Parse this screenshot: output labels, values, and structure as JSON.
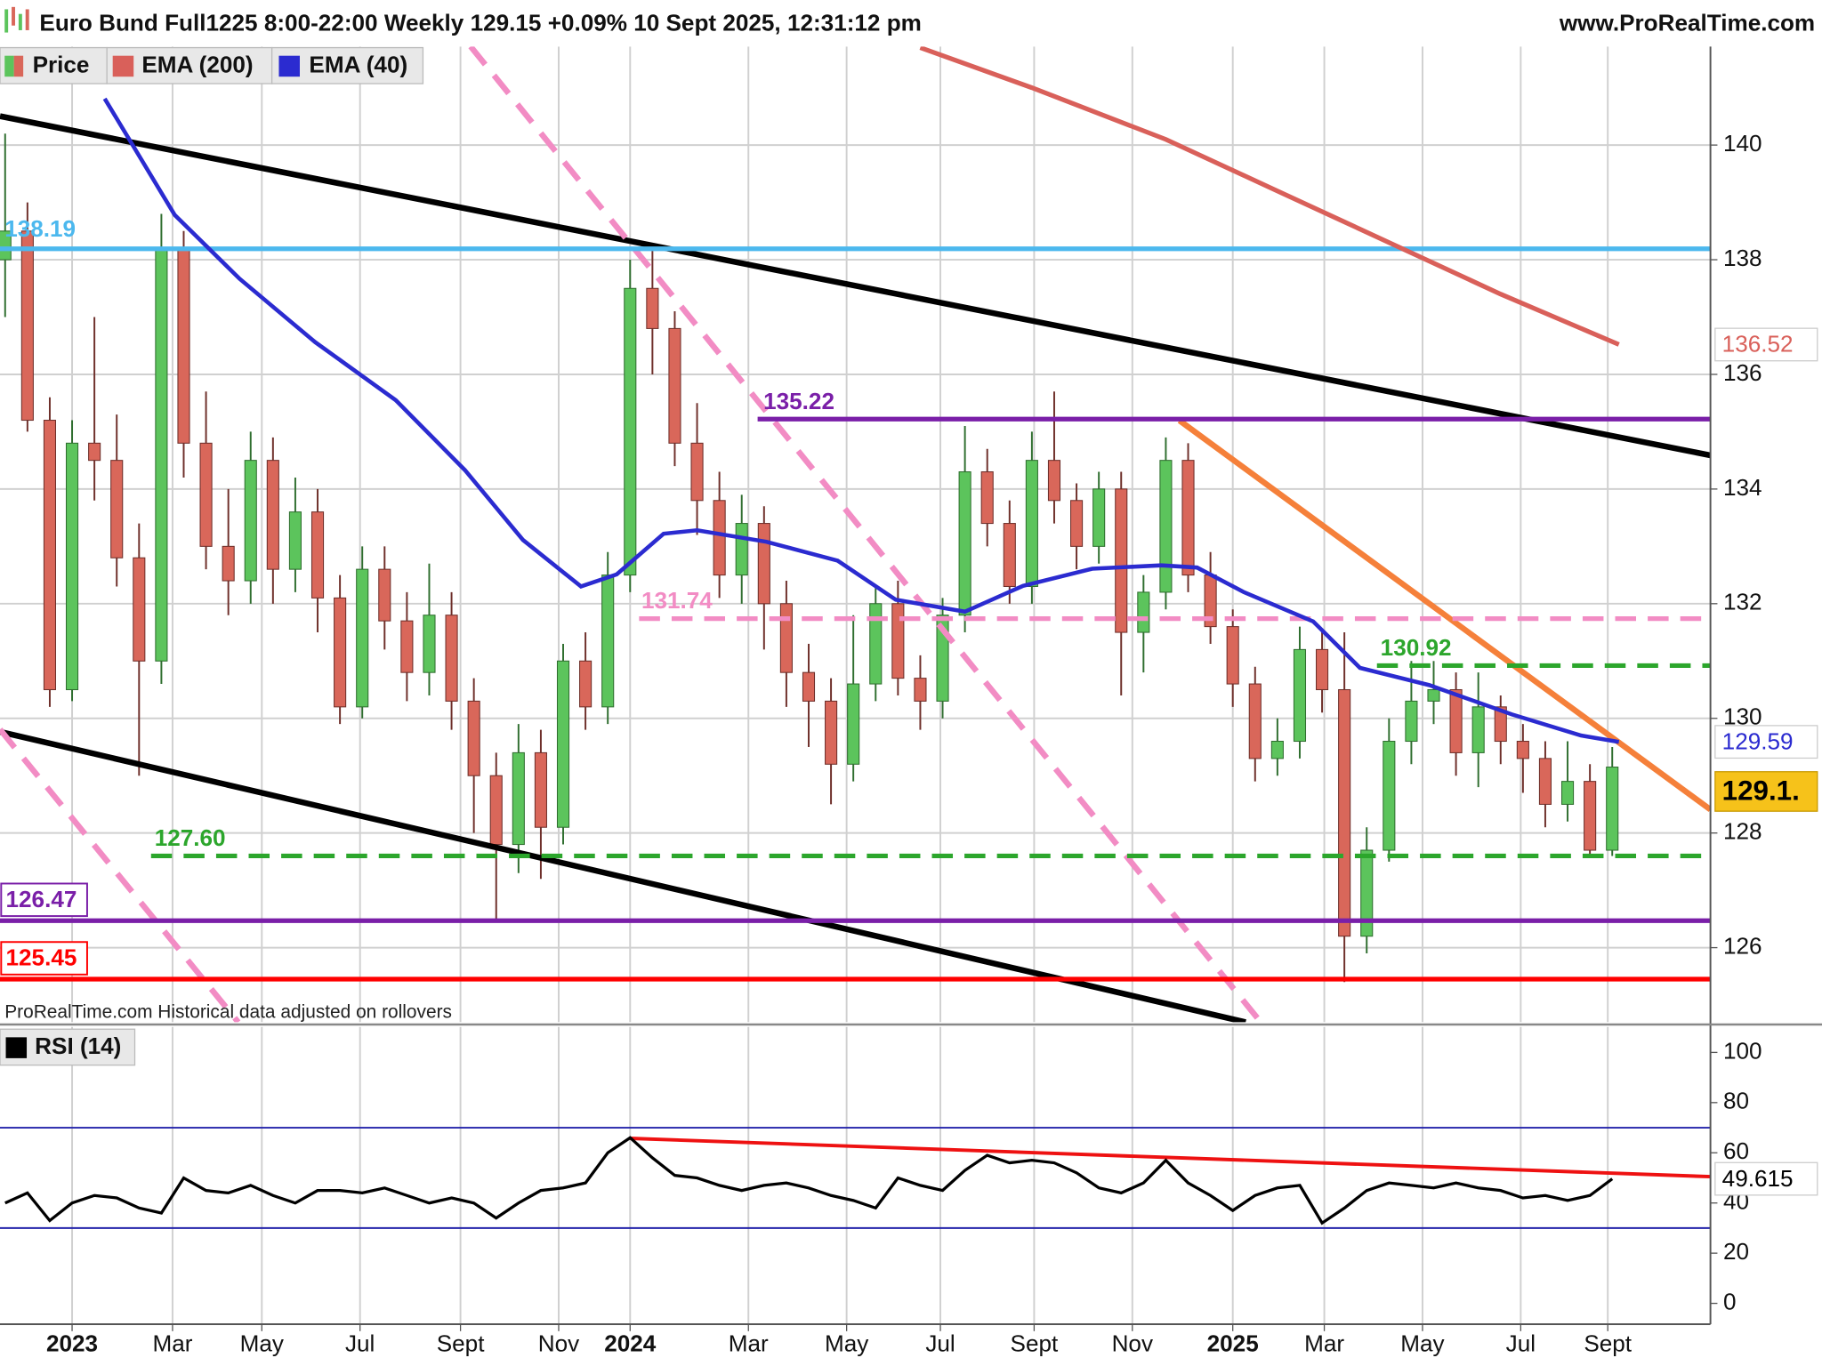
{
  "header": {
    "title": "Euro Bund Full1225 8:00-22:00 Weekly 129.15 +0.09% 10 Sept 2025, 12:31:12 pm",
    "source": "www.ProRealTime.com"
  },
  "chart_data": [
    {
      "type": "candlestick",
      "note": "ProRealTime.com  Historical data adjusted on rollovers",
      "xlim": [
        -0.23,
        76.4
      ],
      "ylim": [
        124.7,
        141.72
      ],
      "yticks": [
        126,
        128,
        130,
        132,
        134,
        136,
        138,
        140
      ],
      "grid": true,
      "series": [
        {
          "name": "Price",
          "up_color": "#5cc45c",
          "down_color": "#d9675a",
          "last_label": "129.1.",
          "open": [
            138.0,
            138.5,
            135.2,
            130.5,
            134.8,
            134.5,
            132.8,
            131.0,
            138.2,
            134.8,
            133.0,
            132.4,
            134.5,
            132.6,
            133.6,
            132.1,
            130.2,
            132.6,
            131.7,
            130.8,
            131.8,
            130.3,
            129.0,
            127.8,
            129.4,
            128.1,
            131.0,
            130.2,
            132.5,
            137.5,
            136.8,
            134.8,
            133.8,
            132.5,
            133.4,
            132.0,
            130.8,
            130.3,
            129.2,
            130.6,
            132.0,
            130.7,
            130.3,
            131.8,
            134.3,
            133.4,
            132.3,
            134.5,
            133.8,
            133.0,
            134.0,
            131.5,
            132.2,
            134.5,
            132.5,
            131.6,
            130.6,
            129.3,
            129.6,
            131.2,
            130.5,
            126.2,
            127.7,
            129.6,
            130.3,
            130.5,
            129.4,
            130.2,
            129.6,
            129.3,
            128.5,
            128.9,
            127.7
          ],
          "high": [
            140.2,
            139.0,
            135.6,
            135.2,
            137.0,
            135.3,
            133.4,
            138.8,
            138.5,
            135.7,
            134.0,
            135.0,
            134.9,
            134.2,
            134.0,
            132.5,
            133.0,
            133.0,
            132.2,
            132.7,
            132.2,
            130.7,
            129.4,
            129.9,
            129.8,
            131.3,
            131.5,
            132.9,
            138.0,
            138.2,
            137.1,
            135.5,
            134.3,
            133.9,
            133.7,
            132.4,
            131.3,
            130.7,
            131.8,
            132.3,
            132.4,
            131.1,
            132.1,
            135.1,
            134.7,
            133.8,
            135.0,
            135.7,
            134.1,
            134.3,
            134.3,
            132.5,
            134.9,
            134.8,
            132.9,
            131.9,
            130.9,
            130.0,
            131.6,
            131.5,
            131.5,
            128.1,
            130.0,
            131.0,
            131.0,
            130.8,
            130.8,
            130.4,
            129.9,
            129.6,
            129.6,
            129.2,
            129.5
          ],
          "low": [
            137.0,
            135.0,
            130.2,
            130.3,
            133.8,
            132.3,
            129.0,
            130.6,
            134.2,
            132.6,
            131.8,
            132.0,
            132.0,
            132.2,
            131.5,
            129.9,
            130.0,
            131.2,
            130.3,
            130.4,
            129.8,
            128.0,
            126.5,
            127.3,
            127.2,
            127.8,
            129.8,
            129.9,
            132.2,
            136.0,
            134.4,
            133.2,
            132.1,
            132.0,
            131.2,
            130.2,
            129.5,
            128.5,
            128.9,
            130.3,
            130.4,
            129.8,
            130.0,
            131.5,
            133.0,
            132.0,
            132.0,
            133.4,
            132.6,
            132.7,
            130.4,
            130.8,
            131.9,
            132.2,
            131.3,
            130.2,
            128.9,
            129.0,
            129.3,
            130.1,
            125.4,
            125.9,
            127.5,
            129.2,
            129.9,
            129.0,
            128.8,
            129.2,
            128.7,
            128.1,
            128.2,
            127.6,
            127.6
          ],
          "close": [
            138.5,
            135.2,
            130.5,
            134.8,
            134.5,
            132.8,
            131.0,
            138.2,
            134.8,
            133.0,
            132.4,
            134.5,
            132.6,
            133.6,
            132.1,
            130.2,
            132.6,
            131.7,
            130.8,
            131.8,
            130.3,
            129.0,
            127.8,
            129.4,
            128.1,
            131.0,
            130.2,
            132.5,
            137.5,
            136.8,
            134.8,
            133.8,
            132.5,
            133.4,
            132.0,
            130.8,
            130.3,
            129.2,
            130.6,
            132.0,
            130.7,
            130.3,
            131.8,
            134.3,
            133.4,
            132.3,
            134.5,
            133.8,
            133.0,
            134.0,
            131.5,
            132.2,
            134.5,
            132.5,
            131.6,
            130.6,
            129.3,
            129.6,
            131.2,
            130.5,
            126.2,
            127.7,
            129.6,
            130.3,
            130.5,
            129.4,
            130.2,
            129.6,
            129.3,
            128.5,
            128.9,
            127.7,
            129.15
          ]
        },
        {
          "name": "EMA (200)",
          "color": "#d9605a",
          "x": [
            41,
            46,
            52,
            57,
            62,
            67,
            72.3
          ],
          "values": [
            141.7,
            141.0,
            140.1,
            139.2,
            138.3,
            137.4,
            136.52
          ]
        },
        {
          "name": "EMA (40)",
          "color": "#2b2bd0",
          "x": [
            4.46,
            7.6,
            10.5,
            13.9,
            17.5,
            20.6,
            23.2,
            25.8,
            27.4,
            29.5,
            31.0,
            34.1,
            37.3,
            39.9,
            43.0,
            45.6,
            48.7,
            51.8,
            53.4,
            55.5,
            58.6,
            60.7,
            63.8,
            67.5,
            70.6,
            72.3
          ],
          "values": [
            140.81,
            138.78,
            137.67,
            136.56,
            135.55,
            134.33,
            133.11,
            132.3,
            132.51,
            133.22,
            133.28,
            133.08,
            132.75,
            132.07,
            131.86,
            132.31,
            132.61,
            132.67,
            132.63,
            132.2,
            131.69,
            130.88,
            130.58,
            130.07,
            129.7,
            129.59
          ]
        }
      ],
      "levels": [
        {
          "value": 138.19,
          "color": "#4cb8ee",
          "style": "solid"
        },
        {
          "value": 135.22,
          "color": "#7a1fa8",
          "style": "solid"
        },
        {
          "value": 131.74,
          "color": "#f28cc4",
          "style": "dashed"
        },
        {
          "value": 130.92,
          "color": "#2ca62c",
          "style": "dashed"
        },
        {
          "value": 127.6,
          "label": "127.60",
          "color": "#2ca62c",
          "style": "dashed"
        },
        {
          "value": 126.47,
          "color": "#7a1fa8",
          "style": "solid"
        },
        {
          "value": 125.45,
          "color": "#ff0000",
          "style": "solid"
        }
      ]
    },
    {
      "type": "line",
      "xlim": [
        -0.23,
        76.4
      ],
      "ylim": [
        -8.3,
        110.2
      ],
      "yticks": [
        0,
        20,
        40,
        60,
        80,
        100
      ],
      "levels": [
        30,
        70
      ],
      "xticks": [
        {
          "value": 3,
          "label": "2023"
        },
        {
          "value": 7.5,
          "label": "Mar"
        },
        {
          "value": 11.5,
          "label": "May"
        },
        {
          "value": 15.9,
          "label": "Jul"
        },
        {
          "value": 20.4,
          "label": "Sept"
        },
        {
          "value": 24.8,
          "label": "Nov"
        },
        {
          "value": 28,
          "label": "2024"
        },
        {
          "value": 33.3,
          "label": "Mar"
        },
        {
          "value": 37.7,
          "label": "May"
        },
        {
          "value": 41.9,
          "label": "Jul"
        },
        {
          "value": 46.1,
          "label": "Sept"
        },
        {
          "value": 50.5,
          "label": "Nov"
        },
        {
          "value": 55,
          "label": "2025"
        },
        {
          "value": 59.1,
          "label": "Mar"
        },
        {
          "value": 63.5,
          "label": "May"
        },
        {
          "value": 67.9,
          "label": "Jul"
        },
        {
          "value": 71.8,
          "label": "Sept"
        }
      ],
      "series": [
        {
          "name": "RSI (14)",
          "color": "#000000",
          "values": [
            40,
            44,
            33,
            40,
            43,
            42,
            38,
            36,
            50,
            45,
            44,
            47,
            43,
            40,
            45,
            45,
            44,
            46,
            43,
            40,
            42,
            40,
            34,
            40,
            45,
            46,
            48,
            60,
            66,
            58,
            51,
            50,
            47,
            45,
            47,
            48,
            46,
            43,
            41,
            38,
            50,
            47,
            45,
            53,
            59,
            56,
            57,
            56,
            52,
            46,
            44,
            48,
            57,
            48,
            43,
            37,
            43,
            46,
            47,
            32,
            38,
            45,
            48,
            47,
            46,
            48,
            46,
            45,
            42,
            43,
            41,
            43,
            49.615
          ]
        }
      ]
    }
  ]
}
